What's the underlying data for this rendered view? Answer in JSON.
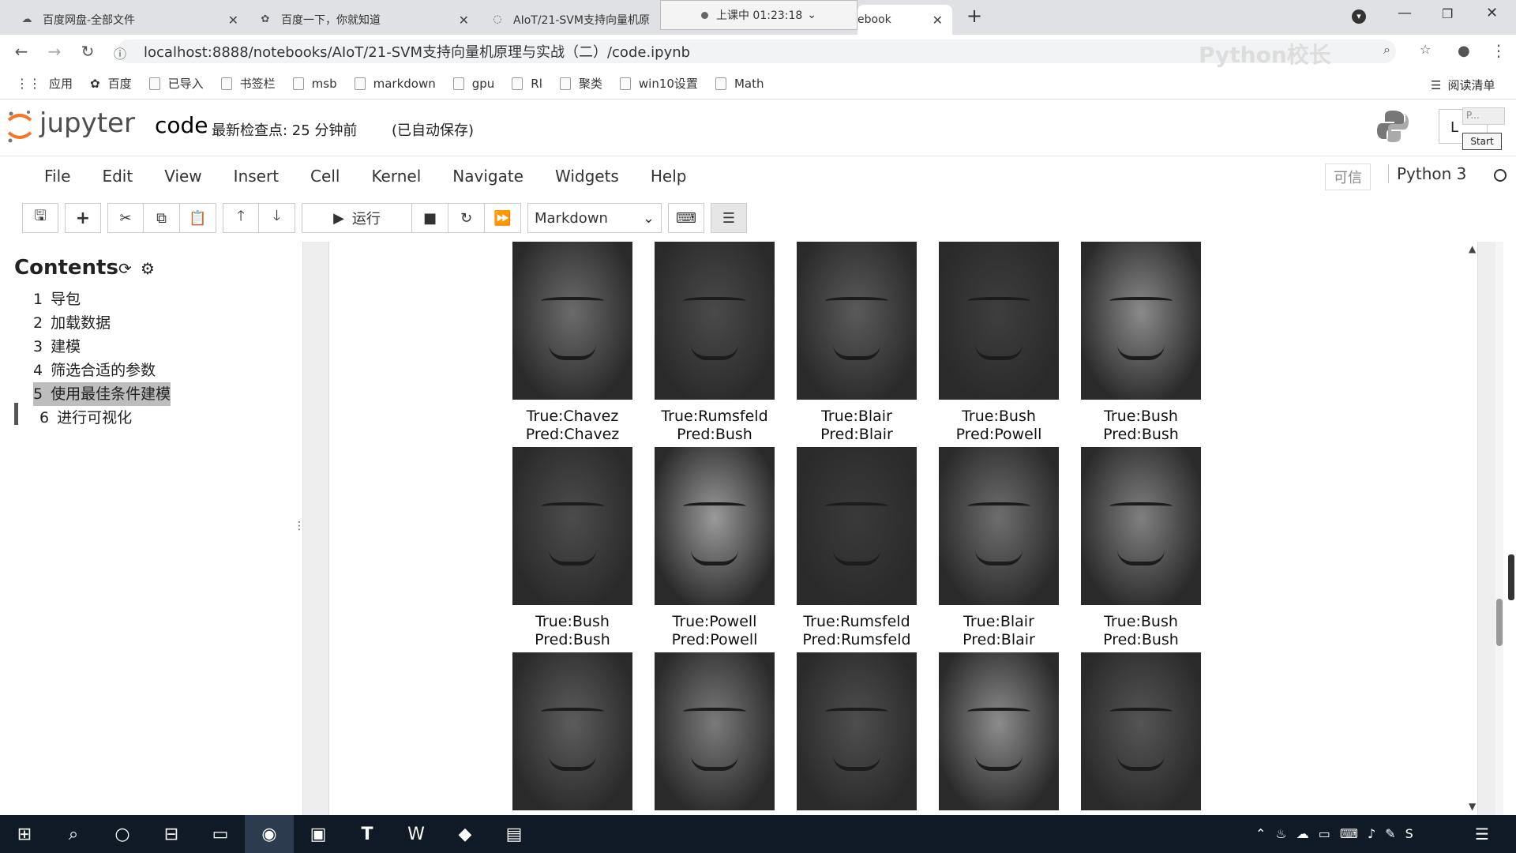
{
  "browser": {
    "tabs": [
      {
        "label": "百度网盘-全部文件",
        "icon": "baidu-pan-icon"
      },
      {
        "label": "百度一下，你就知道",
        "icon": "baidu-paw-icon"
      },
      {
        "label": "AIoT/21-SVM支持向量机原",
        "icon": "loading-icon"
      },
      {
        "label": "ebook",
        "icon": "jupyter-icon"
      }
    ],
    "recording": "上课中 01:23:18",
    "url": "localhost:8888/notebooks/AIoT/21-SVM支持向量机原理与实战（二）/code.ipynb",
    "watermark": "Python校长",
    "bookmarks": [
      "应用",
      "百度",
      "已导入",
      "书签栏",
      "msb",
      "markdown",
      "gpu",
      "Rl",
      "聚类",
      "win10设置",
      "Math"
    ],
    "reading_list": "阅读清单"
  },
  "jupyter": {
    "logo": "jupyter",
    "notebook_name": "code",
    "checkpoint": "最新检查点: 25 分钟前",
    "autosave": "(已自动保存)",
    "user_button": "L",
    "popup_text": "P...",
    "popup_start": "Start",
    "menu": [
      "File",
      "Edit",
      "View",
      "Insert",
      "Cell",
      "Kernel",
      "Navigate",
      "Widgets",
      "Help"
    ],
    "trusted": "可信",
    "kernel": "Python 3",
    "run_label": "运行",
    "cell_type": "Markdown"
  },
  "toc": {
    "title": "Contents",
    "items": [
      {
        "num": "1",
        "label": "导包"
      },
      {
        "num": "2",
        "label": "加载数据"
      },
      {
        "num": "3",
        "label": "建模"
      },
      {
        "num": "4",
        "label": "筛选合适的参数"
      },
      {
        "num": "5",
        "label": "使用最佳条件建模"
      },
      {
        "num": "6",
        "label": "进行可视化"
      }
    ]
  },
  "faces": [
    {
      "true": "True:Chavez",
      "pred": "Pred:Chavez",
      "shade": "#6b6b6b"
    },
    {
      "true": "True:Rumsfeld",
      "pred": "Pred:Bush",
      "shade": "#4a4a4a"
    },
    {
      "true": "True:Blair",
      "pred": "Pred:Blair",
      "shade": "#5a5a5a"
    },
    {
      "true": "True:Bush",
      "pred": "Pred:Powell",
      "shade": "#3e3e3e"
    },
    {
      "true": "True:Bush",
      "pred": "Pred:Bush",
      "shade": "#8a8a8a"
    },
    {
      "true": "True:Bush",
      "pred": "Pred:Bush",
      "shade": "#4c4c4c"
    },
    {
      "true": "True:Powell",
      "pred": "Pred:Powell",
      "shade": "#9a9a9a"
    },
    {
      "true": "True:Rumsfeld",
      "pred": "Pred:Rumsfeld",
      "shade": "#3a3a3a"
    },
    {
      "true": "True:Blair",
      "pred": "Pred:Blair",
      "shade": "#6e6e6e"
    },
    {
      "true": "True:Bush",
      "pred": "Pred:Bush",
      "shade": "#808080"
    },
    {
      "true": "",
      "pred": "",
      "shade": "#5c5c5c"
    },
    {
      "true": "",
      "pred": "",
      "shade": "#7a7a7a"
    },
    {
      "true": "",
      "pred": "",
      "shade": "#4e4e4e"
    },
    {
      "true": "",
      "pred": "",
      "shade": "#8c8c8c"
    },
    {
      "true": "",
      "pred": "",
      "shade": "#555555"
    }
  ]
}
